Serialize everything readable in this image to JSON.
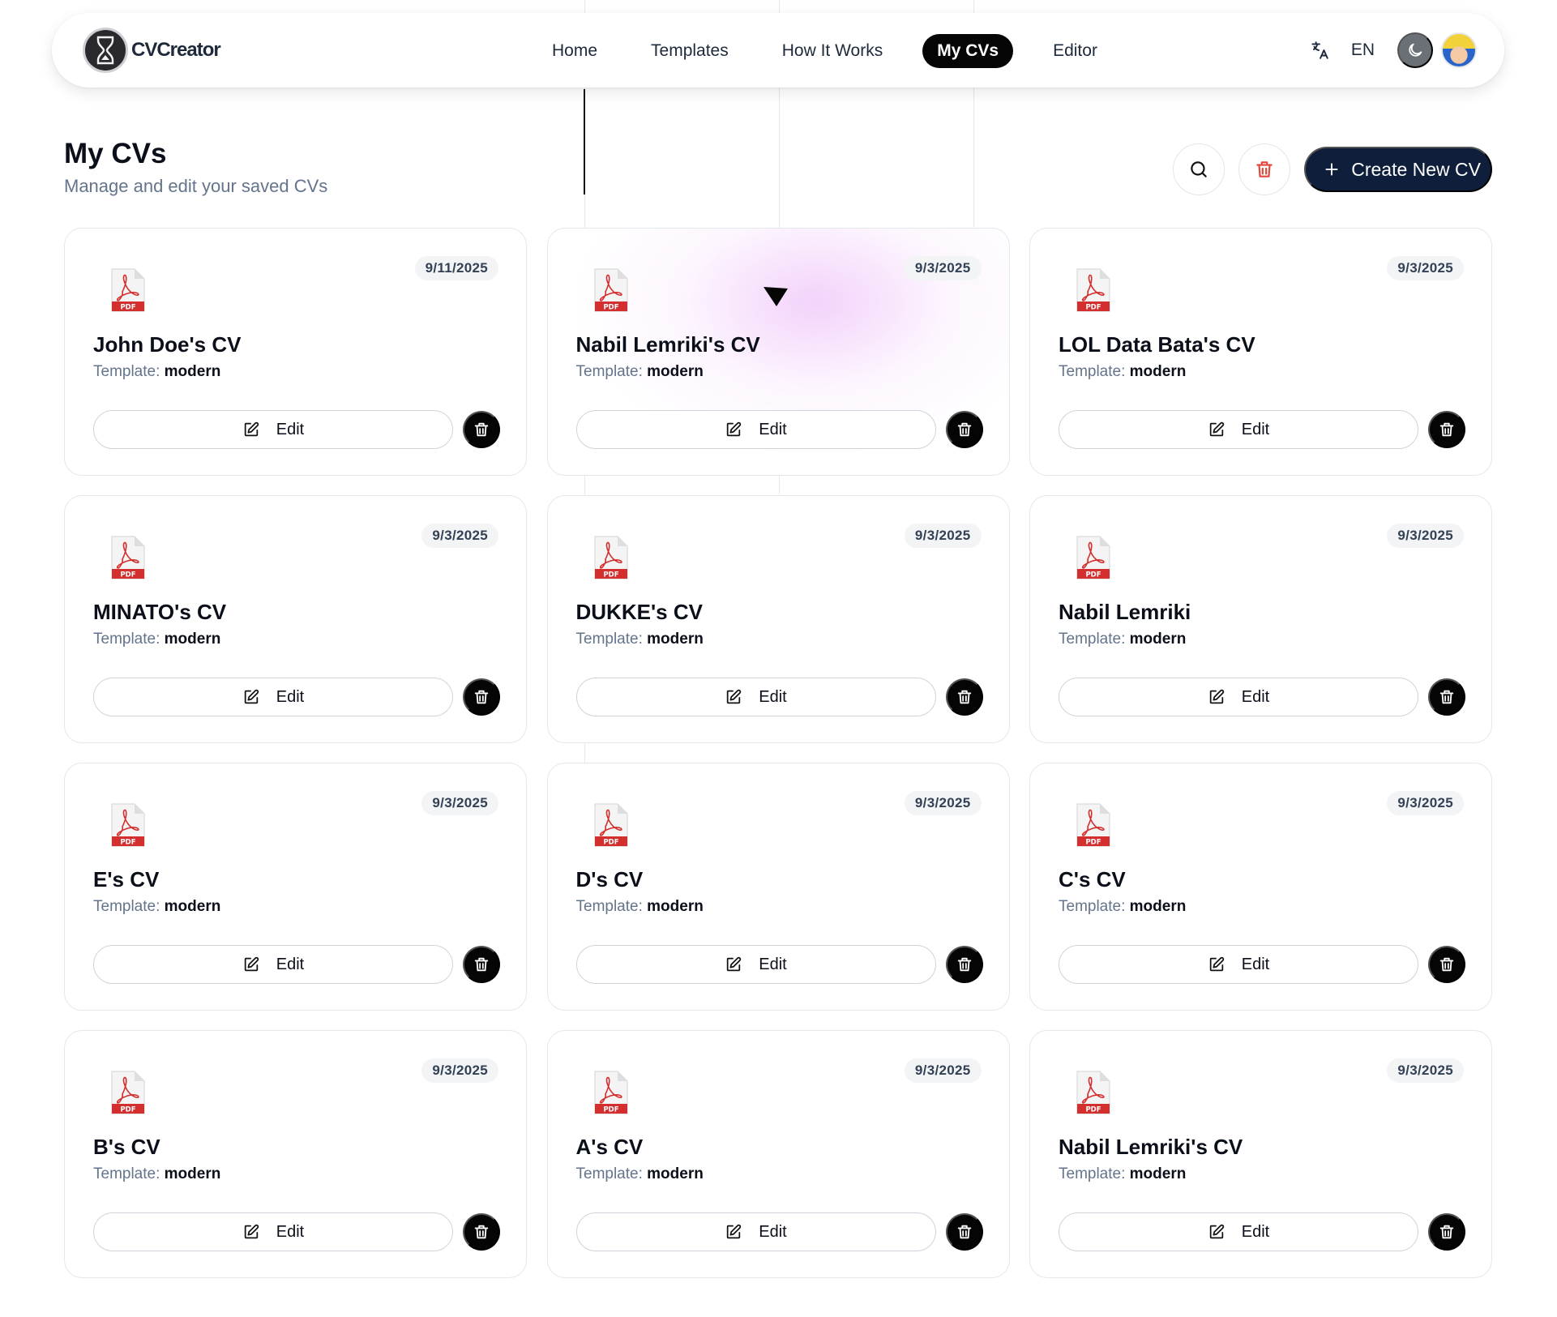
{
  "brand": {
    "name": "CVCreator",
    "logo_icon": "brand-logo-icon"
  },
  "nav": {
    "items": [
      {
        "label": "Home",
        "active": false
      },
      {
        "label": "Templates",
        "active": false
      },
      {
        "label": "How It Works",
        "active": false
      },
      {
        "label": "My CVs",
        "active": true
      },
      {
        "label": "Editor",
        "active": false
      }
    ],
    "language": {
      "icon": "translate-icon",
      "label": "EN"
    },
    "theme_toggle_icon": "moon-icon",
    "avatar_icon": "user-avatar"
  },
  "header": {
    "title": "My CVs",
    "subtitle": "Manage and edit your saved CVs",
    "search_icon": "search-icon",
    "delete_all_icon": "trash-icon",
    "create_label": "Create New CV",
    "create_icon": "plus-icon"
  },
  "cards": [
    {
      "title": "John Doe's CV",
      "template_label": "Template:",
      "template": "modern",
      "date": "9/11/2025",
      "edit_label": "Edit"
    },
    {
      "title": "Nabil Lemriki's CV",
      "template_label": "Template:",
      "template": "modern",
      "date": "9/3/2025",
      "edit_label": "Edit"
    },
    {
      "title": "LOL Data Bata's CV",
      "template_label": "Template:",
      "template": "modern",
      "date": "9/3/2025",
      "edit_label": "Edit"
    },
    {
      "title": "MINATO's CV",
      "template_label": "Template:",
      "template": "modern",
      "date": "9/3/2025",
      "edit_label": "Edit"
    },
    {
      "title": "DUKKE's CV",
      "template_label": "Template:",
      "template": "modern",
      "date": "9/3/2025",
      "edit_label": "Edit"
    },
    {
      "title": "Nabil Lemriki",
      "template_label": "Template:",
      "template": "modern",
      "date": "9/3/2025",
      "edit_label": "Edit"
    },
    {
      "title": "E's CV",
      "template_label": "Template:",
      "template": "modern",
      "date": "9/3/2025",
      "edit_label": "Edit"
    },
    {
      "title": "D's CV",
      "template_label": "Template:",
      "template": "modern",
      "date": "9/3/2025",
      "edit_label": "Edit"
    },
    {
      "title": "C's CV",
      "template_label": "Template:",
      "template": "modern",
      "date": "9/3/2025",
      "edit_label": "Edit"
    },
    {
      "title": "B's CV",
      "template_label": "Template:",
      "template": "modern",
      "date": "9/3/2025",
      "edit_label": "Edit"
    },
    {
      "title": "A's CV",
      "template_label": "Template:",
      "template": "modern",
      "date": "9/3/2025",
      "edit_label": "Edit"
    },
    {
      "title": "Nabil Lemriki's CV",
      "template_label": "Template:",
      "template": "modern",
      "date": "9/3/2025",
      "edit_label": "Edit"
    }
  ],
  "card_icons": {
    "file": "pdf-file-icon",
    "edit": "edit-icon",
    "delete": "trash-icon"
  },
  "hovered_card_index": 1,
  "colors": {
    "accent": "#0f1e3a",
    "active_nav": "#050505",
    "delete_red": "#e0463c",
    "pdf_red": "#d32f2f",
    "hover_glow": "#e9adf7"
  }
}
